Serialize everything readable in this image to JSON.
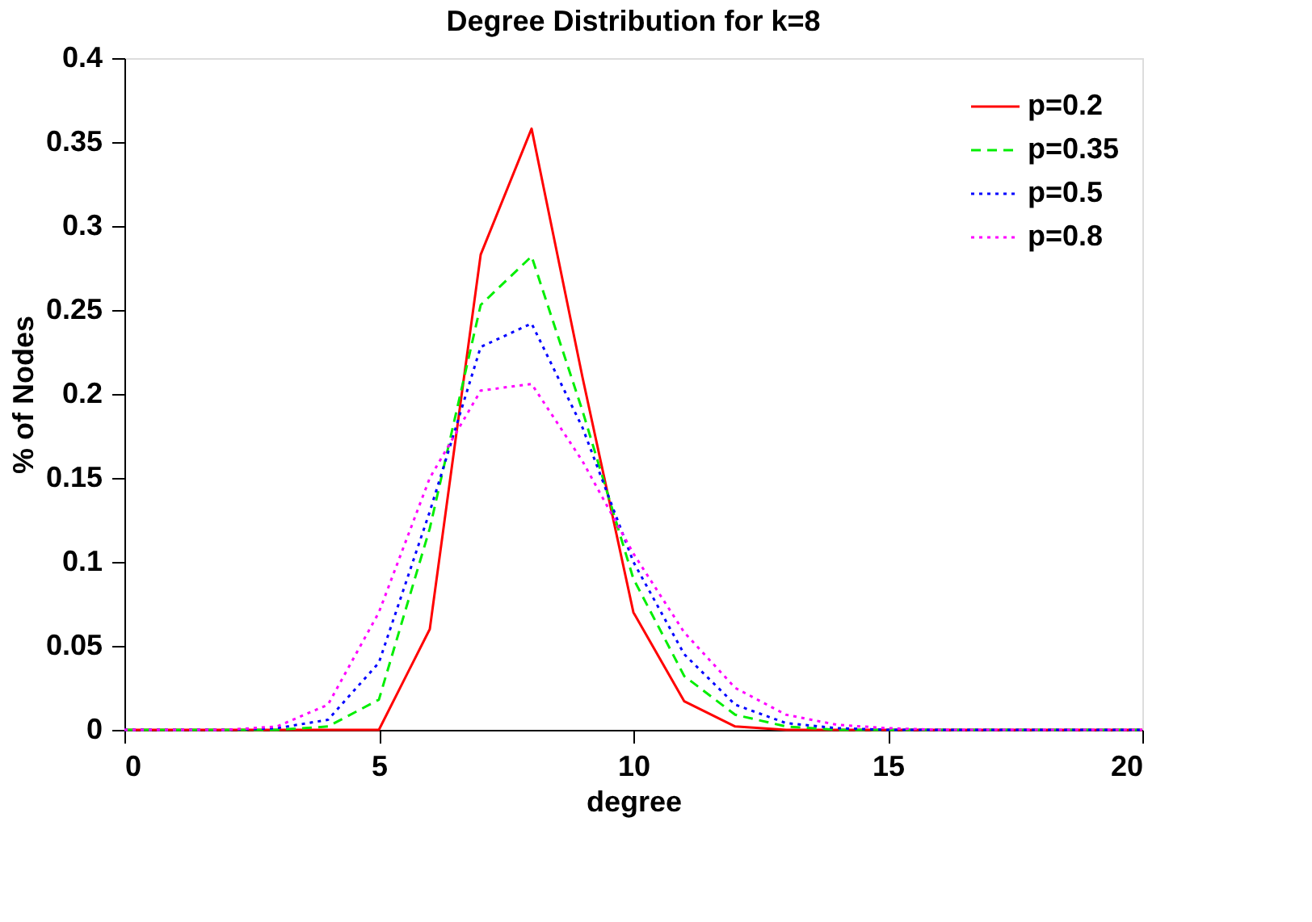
{
  "chart_data": {
    "type": "line",
    "title": "Degree Distribution for k=8",
    "xlabel": "degree",
    "ylabel": "% of Nodes",
    "x": [
      0,
      1,
      2,
      3,
      4,
      5,
      6,
      7,
      8,
      9,
      10,
      11,
      12,
      13,
      14,
      15,
      16,
      17,
      18,
      19,
      20
    ],
    "xlim": [
      0,
      20
    ],
    "xticks": [
      0,
      5,
      10,
      15,
      20
    ],
    "ylim": [
      0,
      0.4
    ],
    "yticks": [
      0,
      0.05,
      0.1,
      0.15,
      0.2,
      0.25,
      0.3,
      0.35,
      0.4
    ],
    "grid": false,
    "legend": "top right",
    "marker": "none",
    "series": [
      {
        "name": "p=0.2",
        "color": "#ff0000",
        "line_style": "solid",
        "values": [
          0,
          0,
          0,
          0,
          0,
          0,
          0.06,
          0.283,
          0.358,
          0.21,
          0.07,
          0.017,
          0.002,
          0,
          0,
          0,
          0,
          0,
          0,
          0,
          0
        ]
      },
      {
        "name": "p=0.35",
        "color": "#00ee00",
        "line_style": "dashed",
        "values": [
          0,
          0,
          0,
          0,
          0.002,
          0.018,
          0.12,
          0.253,
          0.282,
          0.19,
          0.09,
          0.032,
          0.009,
          0.002,
          0,
          0,
          0,
          0,
          0,
          0,
          0
        ]
      },
      {
        "name": "p=0.5",
        "color": "#0000ff",
        "line_style": "dotted",
        "values": [
          0,
          0,
          0,
          0.001,
          0.006,
          0.04,
          0.13,
          0.228,
          0.242,
          0.18,
          0.1,
          0.045,
          0.015,
          0.004,
          0.001,
          0,
          0,
          0,
          0,
          0,
          0
        ]
      },
      {
        "name": "p=0.8",
        "color": "#ff00ff",
        "line_style": "dotted",
        "values": [
          0,
          0,
          0,
          0.002,
          0.015,
          0.07,
          0.15,
          0.202,
          0.206,
          0.16,
          0.105,
          0.058,
          0.025,
          0.009,
          0.003,
          0.001,
          0,
          0,
          0,
          0,
          0
        ]
      }
    ]
  }
}
